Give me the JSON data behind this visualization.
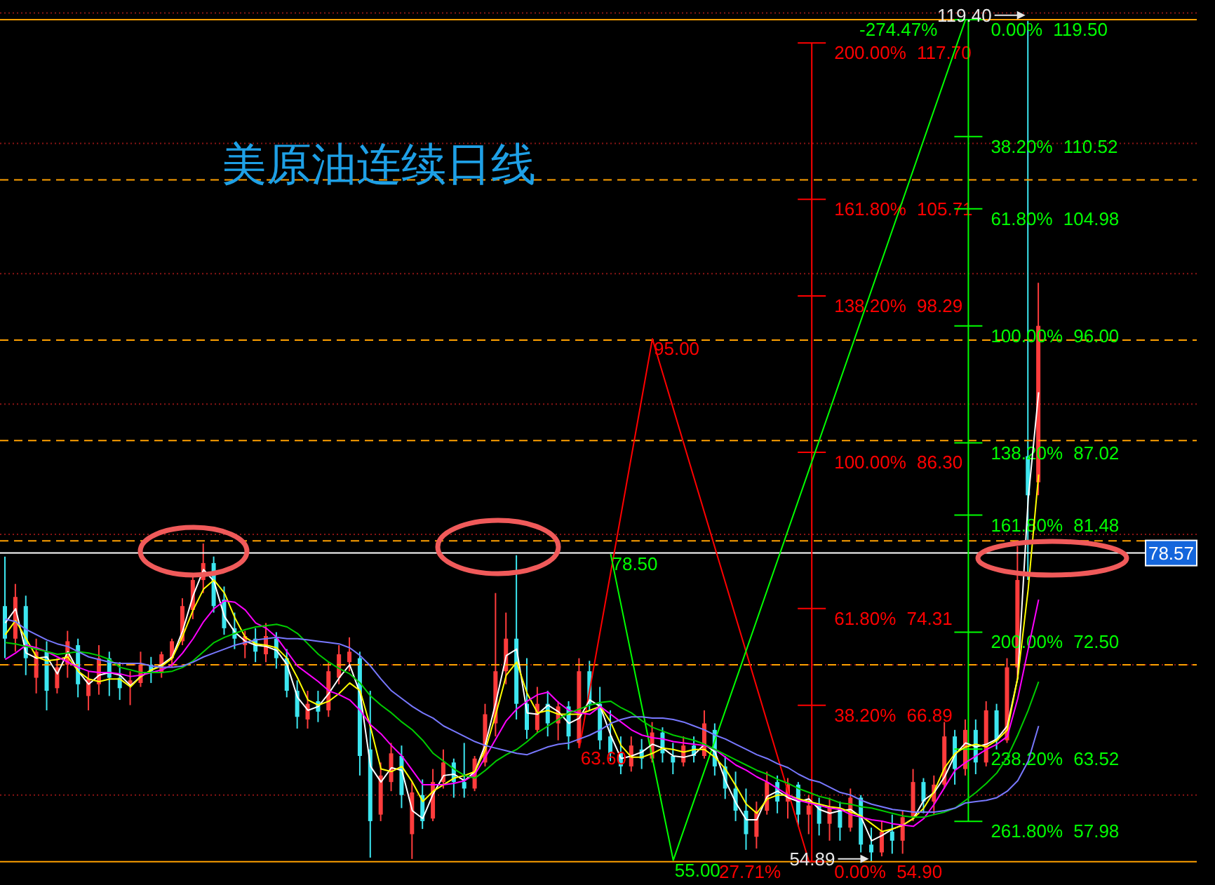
{
  "chart_data": {
    "type": "candlestick",
    "title": "美原油连续日线",
    "categories": [
      null,
      null,
      null,
      null,
      null,
      null,
      null,
      null,
      null,
      null,
      null,
      null,
      null,
      null,
      null,
      null,
      null,
      null,
      null,
      null,
      null,
      null,
      null,
      null,
      null,
      null,
      null,
      null,
      null,
      null,
      null,
      null,
      null,
      null,
      null,
      null,
      null,
      null,
      null,
      null,
      null,
      null,
      null,
      null,
      null,
      null,
      null,
      null,
      null,
      null,
      null,
      null,
      null,
      null,
      null,
      null,
      null,
      null,
      null,
      null,
      null,
      null,
      null,
      null,
      null,
      null,
      null,
      null,
      null,
      null,
      null,
      null,
      null,
      null,
      null,
      null,
      null,
      null,
      null,
      null,
      null,
      null,
      null,
      null,
      null,
      null,
      null,
      null,
      null,
      null,
      null,
      null,
      null,
      null,
      null,
      null,
      null,
      null,
      null,
      null
    ],
    "ohlc": [
      [
        74.5,
        78.3,
        70.5,
        72.0
      ],
      [
        72.0,
        76.2,
        71.0,
        75.2
      ],
      [
        74.5,
        75.3,
        69.2,
        70.5
      ],
      [
        69.0,
        72.0,
        67.8,
        71.0
      ],
      [
        71.0,
        71.8,
        66.5,
        68.0
      ],
      [
        68.2,
        70.5,
        67.8,
        69.8
      ],
      [
        70.0,
        72.6,
        69.0,
        71.8
      ],
      [
        71.5,
        72.0,
        67.5,
        68.5
      ],
      [
        67.6,
        69.5,
        66.5,
        68.9
      ],
      [
        68.5,
        71.5,
        67.7,
        70.5
      ],
      [
        70.5,
        71.0,
        67.6,
        69.0
      ],
      [
        69.0,
        70.2,
        67.3,
        68.2
      ],
      [
        68.5,
        69.5,
        66.9,
        68.8
      ],
      [
        68.6,
        71.0,
        68.3,
        70.0
      ],
      [
        70.0,
        70.6,
        68.6,
        69.5
      ],
      [
        69.4,
        71.0,
        69.0,
        70.8
      ],
      [
        70.5,
        72.0,
        69.8,
        71.8
      ],
      [
        71.8,
        75.1,
        71.5,
        74.5
      ],
      [
        74.2,
        77.0,
        73.5,
        76.5
      ],
      [
        76.5,
        79.3,
        75.5,
        77.8
      ],
      [
        77.8,
        78.3,
        74.0,
        74.5
      ],
      [
        75.0,
        76.0,
        72.3,
        72.8
      ],
      [
        72.8,
        74.0,
        71.2,
        72.0
      ],
      [
        71.5,
        72.6,
        70.5,
        72.2
      ],
      [
        72.0,
        72.8,
        70.2,
        71.0
      ],
      [
        70.8,
        73.2,
        70.2,
        72.2
      ],
      [
        72.0,
        72.5,
        69.7,
        70.5
      ],
      [
        70.5,
        71.2,
        67.5,
        68.0
      ],
      [
        68.0,
        68.8,
        65.1,
        66.0
      ],
      [
        65.8,
        68.0,
        65.1,
        67.0
      ],
      [
        67.2,
        68.0,
        65.6,
        66.4
      ],
      [
        66.5,
        70.2,
        66.0,
        69.5
      ],
      [
        69.0,
        71.5,
        68.5,
        70.8
      ],
      [
        70.2,
        72.1,
        69.5,
        71.0
      ],
      [
        70.5,
        71.0,
        61.5,
        63.0
      ],
      [
        63.5,
        68.0,
        55.2,
        58.0
      ],
      [
        58.5,
        62.5,
        58.0,
        61.5
      ],
      [
        61.0,
        64.0,
        60.3,
        63.2
      ],
      [
        63.0,
        63.8,
        59.0,
        60.0
      ],
      [
        57.0,
        61.0,
        55.1,
        60.2
      ],
      [
        60.0,
        61.2,
        57.4,
        58.0
      ],
      [
        58.2,
        62.0,
        58.0,
        61.0
      ],
      [
        61.0,
        63.5,
        60.5,
        62.5
      ],
      [
        62.5,
        62.8,
        59.8,
        61.0
      ],
      [
        61.0,
        64.0,
        59.8,
        60.5
      ],
      [
        60.5,
        63.0,
        60.3,
        62.8
      ],
      [
        62.5,
        67.0,
        62.2,
        66.2
      ],
      [
        65.5,
        75.5,
        64.5,
        69.5
      ],
      [
        69.5,
        74.0,
        68.5,
        72.0
      ],
      [
        72.0,
        78.4,
        65.8,
        67.0
      ],
      [
        67.0,
        70.5,
        64.3,
        65.0
      ],
      [
        65.0,
        68.3,
        64.8,
        67.0
      ],
      [
        67.0,
        68.0,
        64.5,
        65.5
      ],
      [
        65.5,
        67.2,
        64.2,
        66.8
      ],
      [
        66.8,
        67.2,
        63.5,
        64.5
      ],
      [
        64.0,
        70.5,
        63.6,
        69.5
      ],
      [
        69.5,
        70.3,
        66.5,
        67.0
      ],
      [
        67.0,
        68.3,
        63.5,
        64.2
      ],
      [
        64.5,
        66.5,
        62.6,
        63.2
      ],
      [
        63.3,
        64.5,
        61.6,
        62.2
      ],
      [
        62.2,
        64.5,
        61.8,
        63.8
      ],
      [
        63.5,
        64.3,
        62.0,
        62.8
      ],
      [
        62.8,
        65.6,
        62.5,
        64.8
      ],
      [
        64.8,
        65.2,
        62.5,
        63.2
      ],
      [
        63.0,
        64.0,
        61.6,
        62.5
      ],
      [
        62.5,
        64.5,
        62.2,
        63.8
      ],
      [
        63.8,
        64.5,
        62.5,
        63.0
      ],
      [
        63.0,
        66.5,
        62.8,
        65.5
      ],
      [
        65.0,
        65.5,
        61.5,
        62.2
      ],
      [
        62.2,
        63.0,
        59.7,
        60.5
      ],
      [
        60.5,
        61.8,
        58.0,
        58.8
      ],
      [
        58.8,
        60.5,
        55.8,
        57.0
      ],
      [
        56.8,
        59.5,
        55.9,
        58.8
      ],
      [
        58.8,
        61.8,
        58.5,
        61.0
      ],
      [
        61.0,
        61.5,
        58.6,
        59.5
      ],
      [
        59.5,
        61.3,
        58.2,
        60.8
      ],
      [
        60.8,
        61.0,
        57.6,
        58.5
      ],
      [
        58.5,
        60.0,
        57.0,
        59.2
      ],
      [
        59.2,
        59.8,
        56.9,
        57.8
      ],
      [
        57.8,
        59.8,
        56.5,
        59.0
      ],
      [
        59.0,
        59.5,
        56.5,
        57.5
      ],
      [
        57.5,
        60.5,
        57.2,
        59.8
      ],
      [
        59.8,
        60.0,
        55.6,
        56.2
      ],
      [
        56.2,
        57.5,
        54.89,
        55.6
      ],
      [
        55.6,
        58.0,
        55.3,
        57.2
      ],
      [
        57.2,
        58.5,
        55.5,
        56.5
      ],
      [
        56.5,
        58.8,
        55.5,
        58.3
      ],
      [
        58.3,
        62.0,
        58.0,
        61.0
      ],
      [
        61.0,
        61.3,
        58.6,
        59.5
      ],
      [
        59.5,
        61.5,
        58.5,
        60.8
      ],
      [
        60.8,
        65.6,
        60.5,
        64.5
      ],
      [
        64.5,
        65.0,
        60.8,
        62.0
      ],
      [
        62.0,
        65.8,
        61.5,
        65.0
      ],
      [
        65.0,
        65.8,
        61.6,
        62.5
      ],
      [
        62.5,
        67.2,
        62.2,
        66.5
      ],
      [
        66.5,
        67.0,
        63.5,
        64.2
      ],
      [
        64.2,
        70.5,
        64.0,
        69.8
      ],
      [
        69.8,
        79.1,
        69.0,
        76.5
      ],
      [
        86.0,
        119.4,
        76.5,
        83.0
      ],
      [
        84.0,
        99.3,
        83.0,
        96.0
      ]
    ],
    "series": [
      {
        "type": "line",
        "color": "#ffffff",
        "values": [
          73.2,
          74.3,
          70.9,
          70.5,
          70.6,
          69.3,
          71.0,
          69.5,
          68.5,
          69.2,
          69.4,
          69.2,
          68.4,
          69.1,
          69.6,
          70.0,
          70.6,
          72.6,
          75.3,
          77.3,
          76.4,
          73.7,
          72.5,
          71.8,
          71.5,
          71.4,
          71.1,
          70.0,
          67.5,
          66.5,
          66.8,
          67.8,
          69.0,
          70.0,
          67.8,
          62.2,
          61.0,
          62.1,
          61.9,
          58.8,
          58.2,
          60.1,
          61.5,
          61.6,
          61.1,
          61.8,
          63.9,
          67.1,
          70.7,
          71.2,
          66.3,
          66.2,
          66.9,
          66.4,
          65.5,
          65.9,
          67.3,
          66.8,
          64.6,
          62.8,
          63.0,
          63.3,
          63.9,
          63.6,
          63.0,
          62.9,
          63.1,
          63.9,
          63.3,
          61.1,
          59.4,
          58.1,
          58.1,
          59.9,
          60.3,
          59.8,
          59.5,
          59.7,
          58.9,
          58.6,
          58.8,
          58.9,
          58.3,
          56.5,
          56.9,
          57.4,
          57.7,
          58.2,
          59.6,
          60.2,
          61.4,
          63.1,
          64.0,
          63.7,
          63.9,
          64.3,
          65.3,
          69.0,
          82.7,
          90.9
        ]
      },
      {
        "type": "line",
        "color": "#ffff00",
        "values": [
          72.3,
          73.4,
          72.0,
          70.6,
          70.3,
          70.4,
          70.6,
          69.5,
          68.9,
          68.7,
          68.9,
          68.9,
          68.3,
          69.1,
          69.6,
          69.9,
          70.5,
          72.2,
          74.2,
          75.8,
          76.5,
          75.5,
          73.6,
          72.1,
          71.6,
          71.5,
          71.3,
          70.5,
          69.0,
          67.3,
          66.9,
          67.2,
          67.8,
          68.6,
          68.0,
          65.2,
          62.0,
          61.8,
          62.2,
          61.0,
          59.5,
          60.3,
          60.8,
          61.3,
          61.5,
          61.8,
          63.5,
          66.2,
          69.2,
          70.2,
          67.8,
          66.3,
          66.5,
          66.2,
          66.2,
          66.2,
          66.5,
          66.8,
          65.6,
          63.8,
          62.9,
          62.9,
          63.2,
          63.6,
          63.5,
          63.3,
          63.5,
          63.5,
          62.9,
          62.0,
          60.7,
          59.3,
          58.6,
          59.7,
          60.0,
          60.0,
          59.7,
          59.5,
          59.3,
          59.1,
          59.0,
          58.7,
          58.4,
          57.8,
          57.2,
          57.4,
          57.7,
          58.2,
          59.0,
          60.3,
          62.1,
          63.2,
          63.7,
          63.9,
          63.7,
          64.2,
          65.0,
          69.0,
          75.8,
          84.6
        ]
      },
      {
        "type": "line",
        "color": "#ff00ff",
        "values": [
          70.4,
          70.9,
          71.5,
          71.3,
          71.0,
          70.6,
          70.2,
          69.8,
          69.5,
          69.4,
          69.4,
          69.3,
          69.1,
          69.2,
          69.4,
          69.6,
          70.0,
          70.9,
          72.0,
          73.3,
          74.3,
          74.9,
          74.8,
          74.2,
          73.2,
          72.8,
          72.1,
          71.0,
          69.9,
          69.3,
          68.7,
          68.0,
          67.7,
          67.3,
          66.5,
          65.4,
          64.7,
          63.8,
          63.0,
          61.9,
          60.8,
          60.8,
          60.8,
          60.9,
          61.1,
          61.6,
          62.9,
          64.3,
          65.7,
          66.6,
          67.2,
          67.7,
          67.9,
          67.1,
          66.5,
          66.3,
          66.2,
          66.8,
          66.2,
          65.6,
          65.0,
          64.6,
          64.4,
          64.3,
          64.1,
          64.0,
          63.9,
          63.8,
          63.5,
          62.9,
          62.3,
          61.9,
          61.4,
          61.0,
          60.5,
          60.0,
          59.6,
          59.4,
          59.2,
          59.0,
          58.9,
          58.5,
          58.3,
          58.1,
          58.0,
          57.8,
          57.7,
          57.6,
          58.2,
          59.3,
          60.6,
          61.9,
          62.5,
          63.0,
          63.5,
          63.9,
          64.5,
          67.4,
          71.2,
          75.0
        ]
      },
      {
        "type": "line",
        "color": "#00cc00",
        "values": [
          71.7,
          71.6,
          71.4,
          71.2,
          71.0,
          70.8,
          70.9,
          71.0,
          70.9,
          70.7,
          70.4,
          69.8,
          69.6,
          69.4,
          69.4,
          69.4,
          69.5,
          69.8,
          70.3,
          71.0,
          71.7,
          72.1,
          72.4,
          72.7,
          72.9,
          73.0,
          73.1,
          72.9,
          72.4,
          71.6,
          70.8,
          70.2,
          69.7,
          69.3,
          68.6,
          67.6,
          66.9,
          66.3,
          65.6,
          65.0,
          64.2,
          63.2,
          62.6,
          62.0,
          61.5,
          61.3,
          61.9,
          62.6,
          63.1,
          63.5,
          64.1,
          64.8,
          65.3,
          65.8,
          66.3,
          66.6,
          66.9,
          67.1,
          67.2,
          66.7,
          66.3,
          65.7,
          65.2,
          64.9,
          64.6,
          64.4,
          64.2,
          63.9,
          63.5,
          63.1,
          62.7,
          62.3,
          61.9,
          61.6,
          61.2,
          60.9,
          60.5,
          60.2,
          59.9,
          59.7,
          59.4,
          59.3,
          59.1,
          59.0,
          58.8,
          58.6,
          58.4,
          58.3,
          58.3,
          58.5,
          58.7,
          59.0,
          59.6,
          60.2,
          60.9,
          61.7,
          62.9,
          64.6,
          66.5,
          68.7
        ]
      },
      {
        "type": "line",
        "color": "#7878ff",
        "values": [
          73.5,
          73.3,
          72.7,
          72.3,
          71.9,
          71.6,
          71.4,
          71.0,
          70.6,
          70.4,
          70.2,
          70.1,
          70.1,
          70.1,
          69.9,
          69.8,
          69.8,
          69.9,
          70.2,
          70.6,
          70.9,
          71.2,
          71.5,
          71.7,
          71.9,
          72.0,
          72.1,
          72.0,
          72.0,
          71.9,
          71.8,
          71.7,
          71.6,
          71.3,
          70.7,
          69.9,
          68.9,
          68.0,
          67.4,
          66.8,
          66.3,
          65.9,
          65.3,
          64.9,
          64.5,
          64.1,
          63.8,
          63.6,
          63.4,
          63.2,
          63.1,
          63.4,
          63.7,
          63.9,
          64.0,
          64.3,
          64.6,
          65.0,
          65.5,
          65.8,
          66.0,
          66.0,
          65.9,
          65.9,
          65.8,
          65.6,
          65.3,
          65.0,
          64.6,
          64.3,
          63.9,
          63.5,
          63.1,
          62.8,
          62.4,
          62.1,
          61.6,
          61.2,
          61.0,
          60.6,
          60.2,
          60.0,
          59.6,
          59.3,
          59.1,
          58.9,
          58.8,
          58.7,
          58.7,
          58.7,
          58.8,
          59.0,
          59.4,
          59.5,
          59.6,
          59.8,
          60.3,
          61.1,
          62.6,
          65.3
        ]
      },
      {
        "type": "line",
        "color": "#ff0000",
        "values": [
          null,
          null,
          null,
          null,
          null,
          null,
          null,
          null,
          null,
          null,
          null,
          null,
          null,
          null,
          null,
          null,
          null,
          null,
          null,
          null,
          null,
          null,
          null,
          null,
          null,
          null,
          null,
          null,
          null,
          null,
          null,
          null,
          null,
          null,
          null,
          null,
          null,
          null,
          null,
          null,
          null,
          null,
          null,
          null,
          null,
          null,
          null,
          null,
          null,
          null,
          null,
          null,
          null,
          null,
          null,
          63.6,
          null,
          null,
          null,
          null,
          null,
          null,
          95.0,
          null,
          null,
          null,
          null,
          null,
          null,
          null,
          null,
          null,
          null,
          null,
          null,
          null,
          null,
          54.9,
          null,
          null,
          null,
          null,
          null,
          null,
          null,
          null,
          null,
          null,
          null,
          null,
          null,
          null,
          null,
          null,
          null,
          null,
          null,
          null,
          null,
          null
        ],
        "value_labels": [
          null,
          null,
          null,
          null,
          null,
          null,
          null,
          null,
          null,
          null,
          null,
          null,
          null,
          null,
          null,
          null,
          null,
          null,
          null,
          null,
          null,
          null,
          null,
          null,
          null,
          null,
          null,
          null,
          null,
          null,
          null,
          null,
          null,
          null,
          null,
          null,
          null,
          null,
          null,
          null,
          null,
          null,
          null,
          null,
          null,
          null,
          null,
          null,
          null,
          null,
          null,
          null,
          null,
          null,
          null,
          "63.60",
          null,
          null,
          null,
          null,
          null,
          null,
          "95.00",
          null,
          null,
          null,
          null,
          null,
          null,
          null,
          null,
          null,
          null,
          null,
          null,
          null,
          null,
          null,
          null,
          null,
          null,
          null,
          null,
          null,
          null,
          null,
          null,
          null,
          null,
          null,
          null,
          null,
          null,
          null,
          null,
          null,
          null,
          null,
          null,
          null
        ]
      },
      {
        "type": "line",
        "color": "#00ff00",
        "values": [
          null,
          null,
          null,
          null,
          null,
          null,
          null,
          null,
          null,
          null,
          null,
          null,
          null,
          null,
          null,
          null,
          null,
          null,
          null,
          null,
          null,
          null,
          null,
          null,
          null,
          null,
          null,
          null,
          null,
          null,
          null,
          null,
          null,
          null,
          null,
          null,
          null,
          null,
          null,
          null,
          null,
          null,
          null,
          null,
          null,
          null,
          null,
          null,
          null,
          null,
          null,
          null,
          null,
          null,
          null,
          null,
          null,
          null,
          78.5,
          null,
          null,
          null,
          null,
          null,
          55.0,
          null,
          null,
          null,
          null,
          null,
          null,
          null,
          null,
          null,
          null,
          null,
          null,
          null,
          null,
          null,
          null,
          null,
          null,
          null,
          null,
          null,
          null,
          null,
          null,
          null,
          null,
          null,
          119.5,
          null,
          null,
          null,
          null,
          null,
          null,
          null
        ],
        "value_labels": [
          null,
          null,
          null,
          null,
          null,
          null,
          null,
          null,
          null,
          null,
          null,
          null,
          null,
          null,
          null,
          null,
          null,
          null,
          null,
          null,
          null,
          null,
          null,
          null,
          null,
          null,
          null,
          null,
          null,
          null,
          null,
          null,
          null,
          null,
          null,
          null,
          null,
          null,
          null,
          null,
          null,
          null,
          null,
          null,
          null,
          null,
          null,
          null,
          null,
          null,
          null,
          null,
          null,
          null,
          null,
          null,
          null,
          null,
          "78.50",
          null,
          null,
          null,
          null,
          null,
          "55.00",
          null,
          null,
          null,
          null,
          null,
          null,
          null,
          null,
          null,
          null,
          null,
          null,
          null,
          null,
          null,
          null,
          null,
          null,
          null,
          null,
          null,
          null,
          null,
          null,
          null,
          null,
          null,
          null,
          null,
          null,
          null,
          null,
          null,
          null,
          null
        ]
      }
    ],
    "ylim": [
      53.1,
      121.0
    ],
    "yticks": [
      {
        "value": 60,
        "label": null
      },
      {
        "value": 70,
        "label": null
      },
      {
        "value": 80,
        "label": null
      },
      {
        "value": 90,
        "label": null
      },
      {
        "value": 100,
        "label": null
      },
      {
        "value": 110,
        "label": null
      },
      {
        "value": 120,
        "label": null
      }
    ],
    "tick_labels": false,
    "grid": "y",
    "ref_lines": [
      {
        "axis": "y",
        "value": 119.5,
        "color": "#ffa000"
      },
      {
        "axis": "y",
        "value": 107.2,
        "color": "#ffa000",
        "line_style": "dashed"
      },
      {
        "axis": "y",
        "value": 94.9,
        "color": "#ffa000",
        "line_style": "dashed"
      },
      {
        "axis": "y",
        "value": 87.2,
        "color": "#ffa000",
        "line_style": "dashed"
      },
      {
        "axis": "y",
        "value": 79.5,
        "color": "#ffa000",
        "line_style": "dashed"
      },
      {
        "axis": "y",
        "value": 78.57,
        "label": "78.57",
        "color": "#ffffff"
      },
      {
        "axis": "y",
        "value": 70.0,
        "color": "#ffa000",
        "line_style": "dashed"
      },
      {
        "axis": "y",
        "value": 54.89,
        "color": "#ffa000"
      },
      {
        "axis": "y",
        "value": 117.7,
        "label": "200.00% 117.70",
        "color": "#ff0000"
      },
      {
        "axis": "y",
        "value": 105.71,
        "label": "161.80% 105.71",
        "color": "#ff0000"
      },
      {
        "axis": "y",
        "value": 98.29,
        "label": "138.20% 98.29",
        "color": "#ff0000"
      },
      {
        "axis": "y",
        "value": 86.3,
        "label": "100.00% 86.30",
        "color": "#ff0000"
      },
      {
        "axis": "y",
        "value": 74.31,
        "label": "61.80% 74.31",
        "color": "#ff0000"
      },
      {
        "axis": "y",
        "value": 66.89,
        "label": "38.20% 66.89",
        "color": "#ff0000"
      },
      {
        "axis": "y",
        "value": 54.9,
        "label": "0.00% 54.90",
        "color": "#ff0000"
      },
      {
        "axis": "y",
        "value": 119.5,
        "label": "0.00% 119.50",
        "color": "#00ff00"
      },
      {
        "axis": "y",
        "value": 110.52,
        "label": "38.20% 110.52",
        "color": "#00ff00"
      },
      {
        "axis": "y",
        "value": 104.98,
        "label": "61.80% 104.98",
        "color": "#00ff00"
      },
      {
        "axis": "y",
        "value": 96.0,
        "label": "100.00% 96.00",
        "color": "#00ff00"
      },
      {
        "axis": "y",
        "value": 87.02,
        "label": "138.20% 87.02",
        "color": "#00ff00"
      },
      {
        "axis": "y",
        "value": 81.48,
        "label": "161.80% 81.48",
        "color": "#00ff00"
      },
      {
        "axis": "y",
        "value": 72.5,
        "label": "200.00% 72.50",
        "color": "#00ff00"
      },
      {
        "axis": "y",
        "value": 63.52,
        "label": "238.20% 63.52",
        "color": "#00ff00"
      },
      {
        "axis": "y",
        "value": 57.98,
        "label": "261.80% 57.98",
        "color": "#00ff00"
      }
    ],
    "annotations": [
      {
        "text": "119.40",
        "y": 119.4
      },
      {
        "text": "54.89",
        "y": 54.89
      },
      "-274.47%",
      "27.71%"
    ]
  }
}
